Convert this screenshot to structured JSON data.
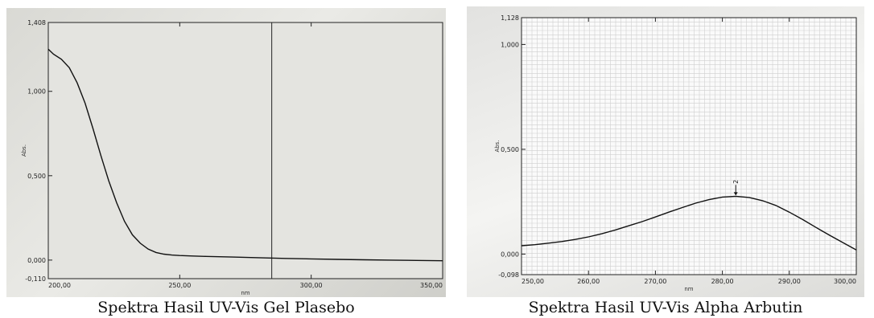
{
  "chart_data": [
    {
      "type": "line",
      "title": "",
      "xlabel": "nm",
      "ylabel": "Abs.",
      "xlim": [
        200,
        350
      ],
      "ylim": [
        -0.11,
        1.408
      ],
      "x_ticks": [
        "200,00",
        "250,00",
        "300,00",
        "350,00"
      ],
      "y_ticks": [
        "-0,110",
        "0,000",
        "0,500",
        "1,000",
        "1,408"
      ],
      "cursor_x": 285,
      "series": [
        {
          "x": [
            200,
            202,
            205,
            208,
            211,
            214,
            217,
            220,
            223,
            226,
            229,
            232,
            235,
            238,
            241,
            244,
            247,
            250,
            255,
            260,
            270,
            280,
            290,
            300,
            310,
            320,
            330,
            340,
            350
          ],
          "y": [
            1.25,
            1.22,
            1.19,
            1.14,
            1.05,
            0.93,
            0.78,
            0.62,
            0.47,
            0.34,
            0.23,
            0.15,
            0.1,
            0.065,
            0.045,
            0.035,
            0.03,
            0.027,
            0.024,
            0.022,
            0.018,
            0.014,
            0.01,
            0.007,
            0.004,
            0.002,
            0.0,
            -0.002,
            -0.004
          ]
        }
      ]
    },
    {
      "type": "line",
      "title": "",
      "xlabel": "nm",
      "ylabel": "Abs.",
      "xlim": [
        250,
        300
      ],
      "ylim": [
        -0.098,
        1.128
      ],
      "x_ticks": [
        "250,00",
        "260,00",
        "270,00",
        "280,00",
        "290,00",
        "300,00"
      ],
      "y_ticks": [
        "-0,098",
        "0,000",
        "0,500",
        "1,000",
        "1,128"
      ],
      "peak_label": "2",
      "peak_x": 282,
      "series": [
        {
          "x": [
            250,
            252,
            254,
            256,
            258,
            260,
            262,
            264,
            266,
            268,
            270,
            272,
            274,
            276,
            278,
            280,
            282,
            284,
            286,
            288,
            290,
            292,
            294,
            296,
            298,
            300
          ],
          "y": [
            0.04,
            0.045,
            0.052,
            0.06,
            0.07,
            0.082,
            0.097,
            0.115,
            0.135,
            0.155,
            0.177,
            0.2,
            0.222,
            0.243,
            0.26,
            0.272,
            0.276,
            0.27,
            0.255,
            0.232,
            0.2,
            0.165,
            0.127,
            0.09,
            0.055,
            0.02
          ]
        }
      ]
    }
  ],
  "captions": {
    "left": "Spektra Hasil UV-Vis Gel Plasebo",
    "right": "Spektra Hasil UV-Vis Alpha Arbutin"
  }
}
